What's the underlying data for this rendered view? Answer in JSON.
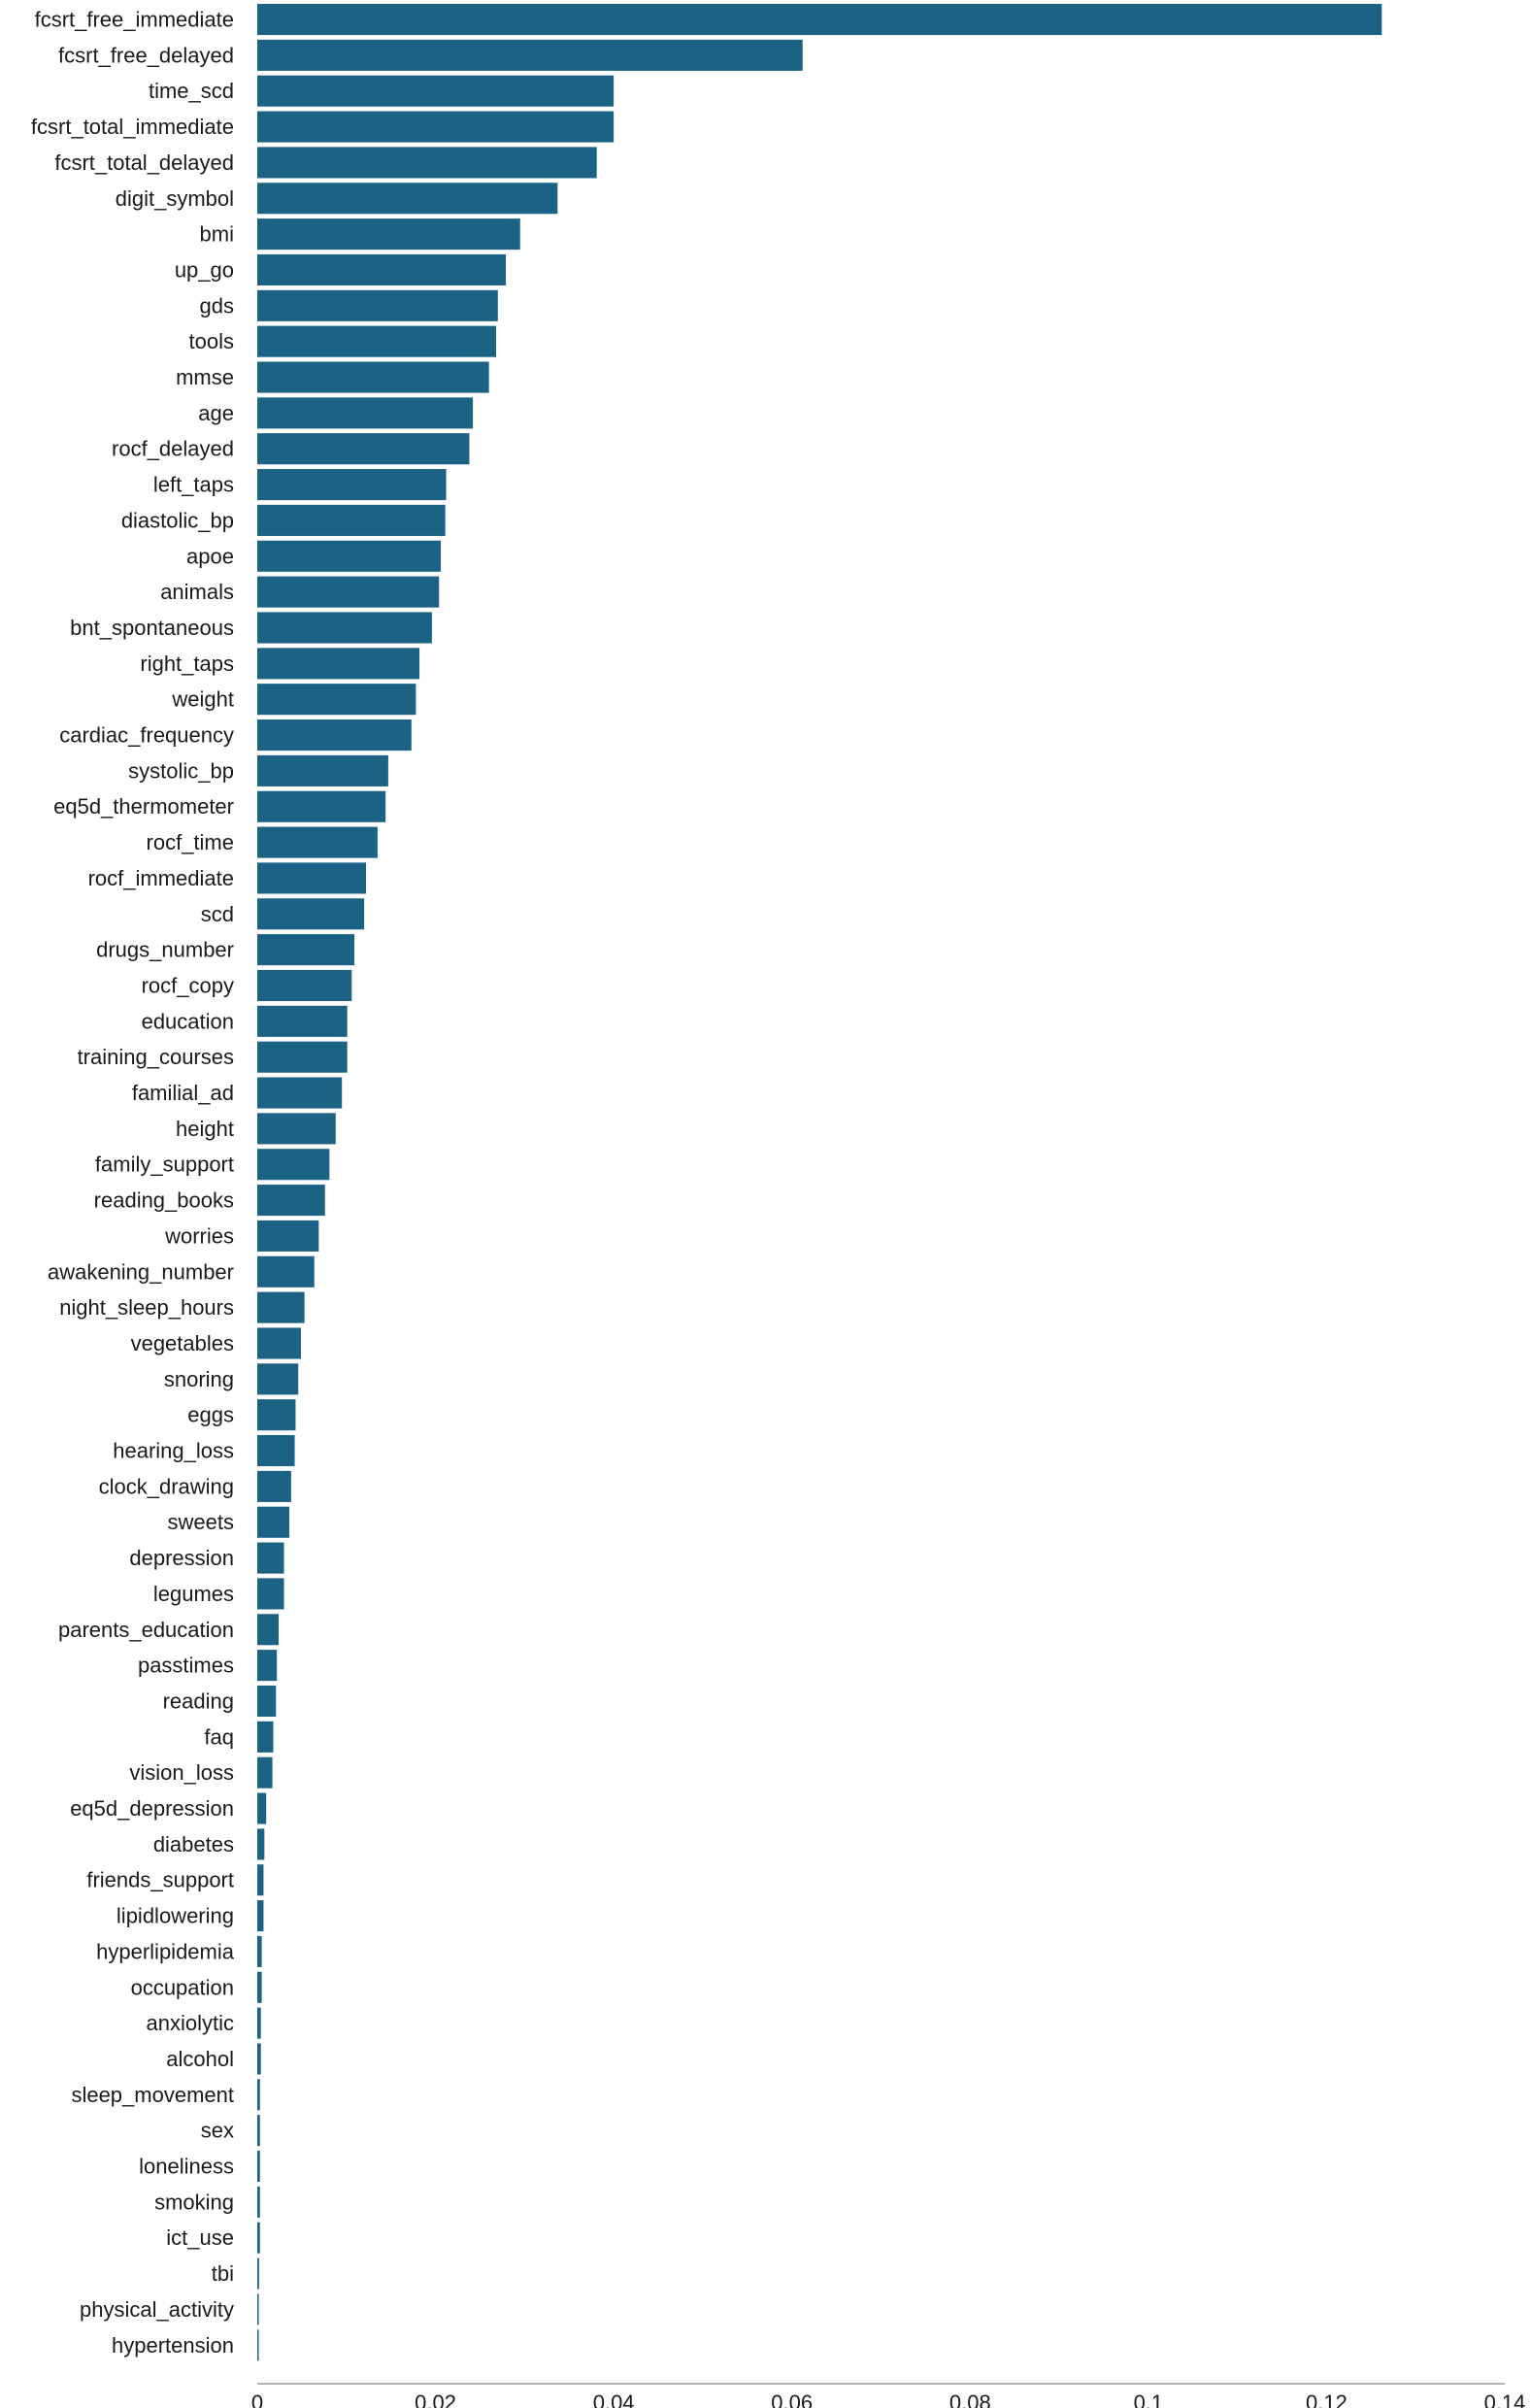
{
  "chart_data": {
    "type": "bar",
    "orientation": "horizontal",
    "title": "",
    "xlabel": "",
    "ylabel": "",
    "xlim": [
      0,
      0.14
    ],
    "x_ticks": [
      0,
      0.02,
      0.04,
      0.06,
      0.08,
      0.1,
      0.12,
      0.14
    ],
    "x_tick_labels": [
      "0",
      "0.02",
      "0.04",
      "0.06",
      "0.08",
      "0.1",
      "0.12",
      "0.14"
    ],
    "grid": false,
    "legend": "none",
    "bar_color": "#1b6284",
    "categories": [
      "fcsrt_free_immediate",
      "fcsrt_free_delayed",
      "time_scd",
      "fcsrt_total_immediate",
      "fcsrt_total_delayed",
      "digit_symbol",
      "bmi",
      "up_go",
      "gds",
      "tools",
      "mmse",
      "age",
      "rocf_delayed",
      "left_taps",
      "diastolic_bp",
      "apoe",
      "animals",
      "bnt_spontaneous",
      "right_taps",
      "weight",
      "cardiac_frequency",
      "systolic_bp",
      "eq5d_thermometer",
      "rocf_time",
      "rocf_immediate",
      "scd",
      "drugs_number",
      "rocf_copy",
      "education",
      "training_courses",
      "familial_ad",
      "height",
      "family_support",
      "reading_books",
      "worries",
      "awakening_number",
      "night_sleep_hours",
      "vegetables",
      "snoring",
      "eggs",
      "hearing_loss",
      "clock_drawing",
      "sweets",
      "depression",
      "legumes",
      "parents_education",
      "passtimes",
      "reading",
      "faq",
      "vision_loss",
      "eq5d_depression",
      "diabetes",
      "friends_support",
      "lipidlowering",
      "hyperlipidemia",
      "occupation",
      "anxiolytic",
      "alcohol",
      "sleep_movement",
      "sex",
      "loneliness",
      "smoking",
      "ict_use",
      "tbi",
      "physical_activity",
      "hypertension"
    ],
    "values": [
      0.1262,
      0.0612,
      0.04,
      0.04,
      0.0381,
      0.0337,
      0.0295,
      0.0279,
      0.027,
      0.0268,
      0.026,
      0.0242,
      0.0238,
      0.0212,
      0.0211,
      0.0206,
      0.0204,
      0.0196,
      0.0182,
      0.0178,
      0.0173,
      0.0147,
      0.0144,
      0.0135,
      0.0122,
      0.012,
      0.0109,
      0.0106,
      0.0101,
      0.0101,
      0.0095,
      0.0088,
      0.0081,
      0.0076,
      0.0069,
      0.0064,
      0.0053,
      0.0049,
      0.0046,
      0.0043,
      0.0042,
      0.0038,
      0.0036,
      0.003,
      0.003,
      0.0024,
      0.0022,
      0.0021,
      0.0018,
      0.0017,
      0.001,
      0.0008,
      0.0007,
      0.0007,
      0.0005,
      0.0005,
      0.0004,
      0.0004,
      0.0003,
      0.0003,
      0.0003,
      0.0003,
      0.0003,
      0.0002,
      0.0001,
      0.0001
    ]
  }
}
